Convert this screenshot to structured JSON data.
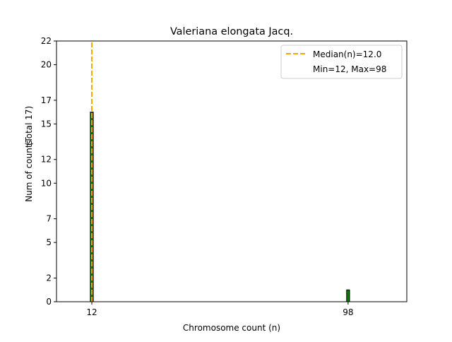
{
  "chart_data": {
    "type": "bar",
    "title": "Valeriana elongata Jacq.",
    "xlabel": "Chromosome count (n)",
    "ylabel": "Num of counts",
    "ylabel2": "(Total 17)",
    "x_ticks": [
      12,
      98
    ],
    "y_ticks": [
      0,
      2,
      5,
      7,
      10,
      12,
      15,
      17,
      20,
      22
    ],
    "xlim": [
      0.15,
      117.7
    ],
    "ylim": [
      0,
      22
    ],
    "bars": [
      {
        "x": 12,
        "value": 16
      },
      {
        "x": 98,
        "value": 1
      }
    ],
    "bar_width": 1,
    "bar_color": "#008000",
    "median": 12.0,
    "median_color": "#ffa500",
    "legend": {
      "placement": "top-right",
      "entries": [
        "Median(n)=12.0",
        "Min=12, Max=98"
      ]
    }
  }
}
